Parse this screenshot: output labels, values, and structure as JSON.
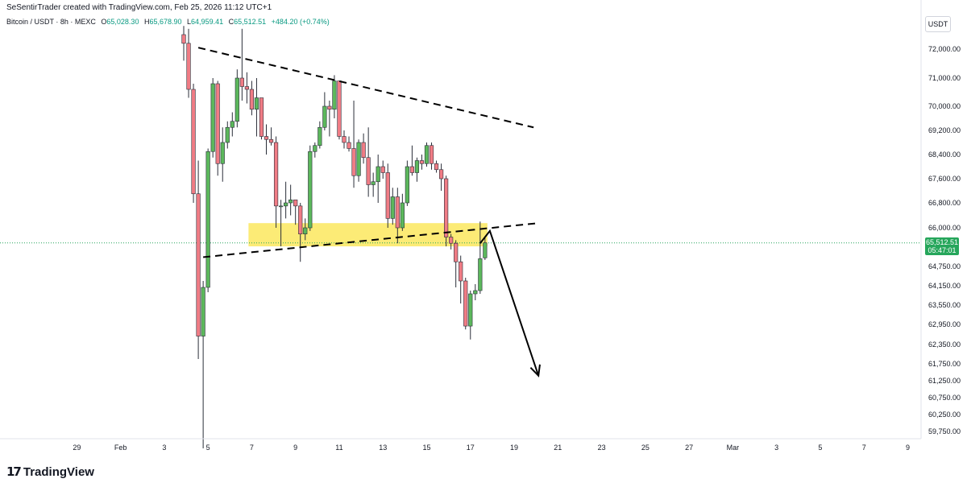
{
  "header": {
    "credit": "SeSentirTrader created with TradingView.com, Feb 25, 2026 11:12 UTC+1",
    "symbol": "Bitcoin / USDT · 8h · MEXC",
    "o_label": "O",
    "o_value": "65,028.30",
    "h_label": "H",
    "h_value": "65,678.90",
    "l_label": "L",
    "l_value": "64,959.41",
    "c_label": "C",
    "c_value": "65,512.51",
    "change": "+484.20 (+0.74%)",
    "currency": "USDT"
  },
  "price_tag": {
    "price": "65,512.51",
    "countdown": "05:47:01",
    "color": "#26a65b"
  },
  "brand": {
    "name": "TradingView",
    "icon": "tradingview-logo-icon"
  },
  "colors": {
    "up": "#5cb85c",
    "down": "#f07c85",
    "zone": "#fbe85e",
    "arrow": "#000000"
  },
  "chart_data": {
    "type": "candlestick",
    "timeframe": "8h",
    "x_tick_labels": [
      {
        "i": -22,
        "label": "29"
      },
      {
        "i": -13,
        "label": "Feb"
      },
      {
        "i": -4,
        "label": "3"
      },
      {
        "i": 5,
        "label": "5"
      },
      {
        "i": 14,
        "label": "7"
      },
      {
        "i": 23,
        "label": "9"
      },
      {
        "i": 32,
        "label": "11"
      },
      {
        "i": 41,
        "label": "13"
      },
      {
        "i": 50,
        "label": "15"
      },
      {
        "i": 59,
        "label": "17"
      },
      {
        "i": 68,
        "label": "19"
      },
      {
        "i": 77,
        "label": "21"
      },
      {
        "i": 86,
        "label": "23"
      },
      {
        "i": 95,
        "label": "25"
      },
      {
        "i": 104,
        "label": "27"
      },
      {
        "i": 113,
        "label": "Mar"
      },
      {
        "i": 122,
        "label": "3"
      },
      {
        "i": 131,
        "label": "5"
      },
      {
        "i": 140,
        "label": "7"
      },
      {
        "i": 149,
        "label": "9"
      }
    ],
    "y_tick_labels": [
      {
        "value": 72000,
        "label": "72,000.00"
      },
      {
        "value": 71000,
        "label": "71,000.00"
      },
      {
        "value": 70000,
        "label": "70,000.00"
      },
      {
        "value": 69200,
        "label": "69,200.00"
      },
      {
        "value": 68400,
        "label": "68,400.00"
      },
      {
        "value": 67600,
        "label": "67,600.00"
      },
      {
        "value": 66800,
        "label": "66,800.00"
      },
      {
        "value": 66000,
        "label": "66,000.00"
      },
      {
        "value": 64750,
        "label": "64,750.00"
      },
      {
        "value": 64150,
        "label": "64,150.00"
      },
      {
        "value": 63550,
        "label": "63,550.00"
      },
      {
        "value": 62950,
        "label": "62,950.00"
      },
      {
        "value": 62350,
        "label": "62,350.00"
      },
      {
        "value": 61750,
        "label": "61,750.00"
      },
      {
        "value": 61250,
        "label": "61,250.00"
      },
      {
        "value": 60750,
        "label": "60,750.00"
      },
      {
        "value": 60250,
        "label": "60,250.00"
      },
      {
        "value": 59750,
        "label": "59,750.00"
      }
    ],
    "candles": [
      {
        "i": 0,
        "o": 72500,
        "h": 72800,
        "l": 71600,
        "c": 72200
      },
      {
        "i": 1,
        "o": 72200,
        "h": 72700,
        "l": 70300,
        "c": 70600
      },
      {
        "i": 2,
        "o": 70600,
        "h": 70800,
        "l": 66800,
        "c": 67100
      },
      {
        "i": 3,
        "o": 67100,
        "h": 68200,
        "l": 61900,
        "c": 62600
      },
      {
        "i": 4,
        "o": 62600,
        "h": 64300,
        "l": 59250,
        "c": 64100
      },
      {
        "i": 5,
        "o": 64100,
        "h": 68600,
        "l": 63950,
        "c": 68500
      },
      {
        "i": 6,
        "o": 68500,
        "h": 71000,
        "l": 68300,
        "c": 70800
      },
      {
        "i": 7,
        "o": 70800,
        "h": 70900,
        "l": 67700,
        "c": 68100
      },
      {
        "i": 8,
        "o": 68100,
        "h": 69300,
        "l": 67500,
        "c": 68800
      },
      {
        "i": 9,
        "o": 68800,
        "h": 69500,
        "l": 68600,
        "c": 69300
      },
      {
        "i": 10,
        "o": 69300,
        "h": 69800,
        "l": 69000,
        "c": 69500
      },
      {
        "i": 11,
        "o": 69500,
        "h": 71300,
        "l": 69300,
        "c": 71000
      },
      {
        "i": 12,
        "o": 71000,
        "h": 72700,
        "l": 70200,
        "c": 70700
      },
      {
        "i": 13,
        "o": 70700,
        "h": 71200,
        "l": 70100,
        "c": 70600
      },
      {
        "i": 14,
        "o": 70600,
        "h": 70900,
        "l": 69700,
        "c": 69900
      },
      {
        "i": 15,
        "o": 69900,
        "h": 71000,
        "l": 69000,
        "c": 70300
      },
      {
        "i": 16,
        "o": 70300,
        "h": 70300,
        "l": 68900,
        "c": 69000
      },
      {
        "i": 17,
        "o": 69000,
        "h": 69400,
        "l": 68400,
        "c": 68900
      },
      {
        "i": 18,
        "o": 68900,
        "h": 69300,
        "l": 68700,
        "c": 68800
      },
      {
        "i": 19,
        "o": 68800,
        "h": 69000,
        "l": 66000,
        "c": 66700
      },
      {
        "i": 20,
        "o": 66700,
        "h": 66900,
        "l": 65400,
        "c": 66700
      },
      {
        "i": 21,
        "o": 66700,
        "h": 67500,
        "l": 66300,
        "c": 66800
      },
      {
        "i": 22,
        "o": 66800,
        "h": 67400,
        "l": 66400,
        "c": 66900
      },
      {
        "i": 23,
        "o": 66900,
        "h": 66900,
        "l": 66100,
        "c": 66700
      },
      {
        "i": 24,
        "o": 66700,
        "h": 66800,
        "l": 64900,
        "c": 65800
      },
      {
        "i": 25,
        "o": 65800,
        "h": 66300,
        "l": 65600,
        "c": 66000
      },
      {
        "i": 26,
        "o": 66000,
        "h": 68700,
        "l": 65900,
        "c": 68500
      },
      {
        "i": 27,
        "o": 68500,
        "h": 68800,
        "l": 68300,
        "c": 68700
      },
      {
        "i": 28,
        "o": 68700,
        "h": 69500,
        "l": 68600,
        "c": 69300
      },
      {
        "i": 29,
        "o": 69300,
        "h": 70500,
        "l": 69200,
        "c": 70000
      },
      {
        "i": 30,
        "o": 70000,
        "h": 70200,
        "l": 69000,
        "c": 69900
      },
      {
        "i": 31,
        "o": 69900,
        "h": 71100,
        "l": 69600,
        "c": 70900
      },
      {
        "i": 32,
        "o": 70900,
        "h": 70900,
        "l": 68900,
        "c": 69000
      },
      {
        "i": 33,
        "o": 69000,
        "h": 69200,
        "l": 68600,
        "c": 68800
      },
      {
        "i": 34,
        "o": 68800,
        "h": 69000,
        "l": 68500,
        "c": 68600
      },
      {
        "i": 35,
        "o": 68600,
        "h": 70200,
        "l": 67300,
        "c": 67700
      },
      {
        "i": 36,
        "o": 67700,
        "h": 68900,
        "l": 67500,
        "c": 68800
      },
      {
        "i": 37,
        "o": 68800,
        "h": 69100,
        "l": 68100,
        "c": 68300
      },
      {
        "i": 38,
        "o": 68300,
        "h": 69300,
        "l": 67000,
        "c": 67400
      },
      {
        "i": 39,
        "o": 67400,
        "h": 67800,
        "l": 67000,
        "c": 67500
      },
      {
        "i": 40,
        "o": 67500,
        "h": 68400,
        "l": 66800,
        "c": 68000
      },
      {
        "i": 41,
        "o": 68000,
        "h": 68200,
        "l": 67600,
        "c": 67800
      },
      {
        "i": 42,
        "o": 67800,
        "h": 68100,
        "l": 66000,
        "c": 66300
      },
      {
        "i": 43,
        "o": 66300,
        "h": 67300,
        "l": 66100,
        "c": 67000
      },
      {
        "i": 44,
        "o": 67000,
        "h": 67300,
        "l": 65500,
        "c": 66000
      },
      {
        "i": 45,
        "o": 66000,
        "h": 67100,
        "l": 65900,
        "c": 66800
      },
      {
        "i": 46,
        "o": 66800,
        "h": 68200,
        "l": 66700,
        "c": 68000
      },
      {
        "i": 47,
        "o": 68000,
        "h": 68700,
        "l": 67700,
        "c": 67800
      },
      {
        "i": 48,
        "o": 67800,
        "h": 68300,
        "l": 67500,
        "c": 68200
      },
      {
        "i": 49,
        "o": 68200,
        "h": 68400,
        "l": 67900,
        "c": 68100
      },
      {
        "i": 50,
        "o": 68100,
        "h": 68800,
        "l": 68000,
        "c": 68700
      },
      {
        "i": 51,
        "o": 68700,
        "h": 68800,
        "l": 67900,
        "c": 68100
      },
      {
        "i": 52,
        "o": 68100,
        "h": 68200,
        "l": 67800,
        "c": 67900
      },
      {
        "i": 53,
        "o": 67900,
        "h": 68100,
        "l": 67200,
        "c": 67600
      },
      {
        "i": 54,
        "o": 67600,
        "h": 67700,
        "l": 65400,
        "c": 65700
      },
      {
        "i": 55,
        "o": 65700,
        "h": 65800,
        "l": 65300,
        "c": 65500
      },
      {
        "i": 56,
        "o": 65500,
        "h": 65600,
        "l": 64100,
        "c": 64900
      },
      {
        "i": 57,
        "o": 64900,
        "h": 65100,
        "l": 63600,
        "c": 64300
      },
      {
        "i": 58,
        "o": 64300,
        "h": 64400,
        "l": 62800,
        "c": 62900
      },
      {
        "i": 59,
        "o": 62900,
        "h": 64000,
        "l": 62500,
        "c": 63900
      },
      {
        "i": 60,
        "o": 63900,
        "h": 64200,
        "l": 63700,
        "c": 64000
      },
      {
        "i": 61,
        "o": 64000,
        "h": 66200,
        "l": 63900,
        "c": 65000
      },
      {
        "i": 62,
        "o": 65028.3,
        "h": 65678.9,
        "l": 64959.41,
        "c": 65512.51
      }
    ],
    "trendlines": [
      {
        "name": "descending-resistance",
        "style": "dashed",
        "p1": {
          "i": 3,
          "v": 72050
        },
        "p2": {
          "i": 72,
          "v": 69300
        }
      },
      {
        "name": "ascending-support",
        "style": "dashed",
        "p1": {
          "i": 4,
          "v": 65050
        },
        "p2": {
          "i": 73,
          "v": 66150
        }
      }
    ],
    "zone": {
      "name": "support-zone",
      "x_from_i": 13,
      "x_to_i": 62,
      "v_low": 65400,
      "v_high": 66150
    },
    "projection_arrow": {
      "points": [
        {
          "i": 61,
          "v": 65500
        },
        {
          "i": 63,
          "v": 65900
        },
        {
          "i": 73,
          "v": 61400
        }
      ]
    },
    "current_price_line": 65512.51
  }
}
